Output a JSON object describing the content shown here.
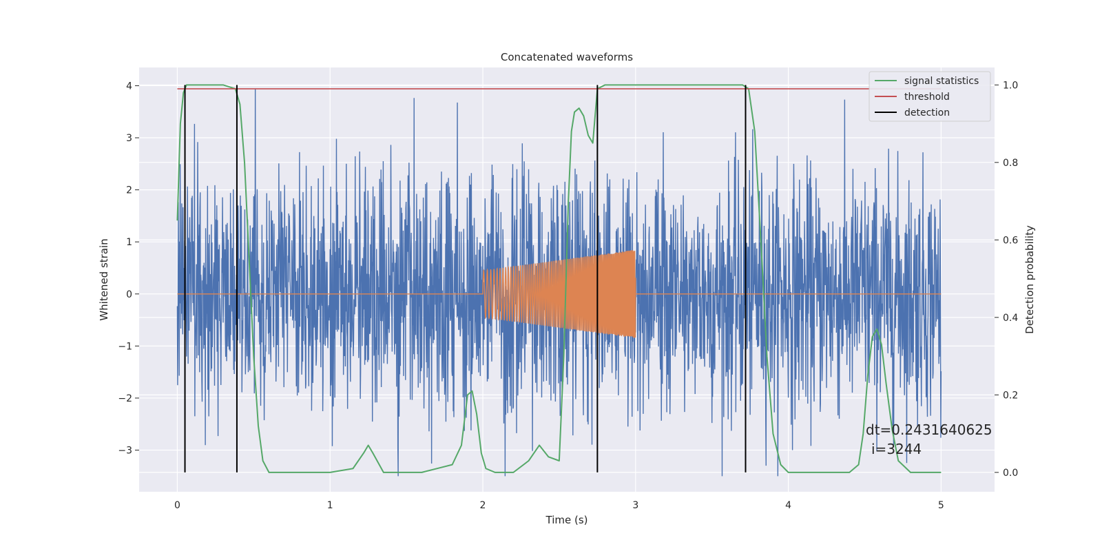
{
  "chart_data": {
    "type": "line",
    "title": "Concatenated waveforms",
    "xlabel": "Time (s)",
    "ylabel": "Whitened strain",
    "y2label": "Detection probability",
    "xlim": [
      -0.25,
      5.35
    ],
    "ylim": [
      -3.8,
      4.35
    ],
    "y2lim": [
      -0.05,
      1.045
    ],
    "xticks": [
      0,
      1,
      2,
      3,
      4,
      5
    ],
    "yticks": [
      -3,
      -2,
      -1,
      0,
      1,
      2,
      3,
      4
    ],
    "y2ticks": [
      0.0,
      0.2,
      0.4,
      0.6,
      0.8,
      1.0
    ],
    "grid": true,
    "legend_position": "top-right",
    "colors": {
      "background": "#eaeaf2",
      "noise": "#4c72b0",
      "injection": "#dd8452",
      "signal_statistics": "#55a868",
      "threshold": "#c44e52",
      "detection": "#000000"
    },
    "legend": [
      "signal statistics",
      "threshold",
      "detection"
    ],
    "noise": {
      "name": "whitened strain",
      "x_range": [
        0,
        5
      ],
      "typical_amplitude": 1.2,
      "max": 4.0,
      "min": -3.5
    },
    "injection": {
      "name": "injected waveform",
      "x_range": [
        2.0,
        3.0
      ],
      "amplitude_start": 0.45,
      "amplitude_end": 0.85,
      "frequency_start": 40,
      "frequency_end": 150
    },
    "series": [
      {
        "name": "signal statistics",
        "axis": "right",
        "x": [
          0.0,
          0.02,
          0.04,
          0.06,
          0.08,
          0.1,
          0.2,
          0.3,
          0.38,
          0.41,
          0.44,
          0.47,
          0.5,
          0.53,
          0.56,
          0.6,
          0.7,
          1.0,
          1.15,
          1.22,
          1.25,
          1.28,
          1.35,
          1.6,
          1.8,
          1.86,
          1.9,
          1.93,
          1.96,
          1.99,
          2.02,
          2.08,
          2.2,
          2.3,
          2.37,
          2.43,
          2.5,
          2.53,
          2.56,
          2.58,
          2.6,
          2.63,
          2.66,
          2.69,
          2.72,
          2.75,
          2.8,
          2.9,
          3.5,
          3.7,
          3.74,
          3.78,
          3.82,
          3.86,
          3.9,
          3.95,
          4.0,
          4.2,
          4.4,
          4.46,
          4.49,
          4.52,
          4.55,
          4.58,
          4.61,
          4.64,
          4.68,
          4.72,
          4.8,
          5.0
        ],
        "values": [
          0.65,
          0.9,
          0.98,
          1.0,
          1.0,
          1.0,
          1.0,
          1.0,
          0.99,
          0.95,
          0.8,
          0.55,
          0.3,
          0.12,
          0.03,
          0.0,
          0.0,
          0.0,
          0.01,
          0.05,
          0.07,
          0.05,
          0.0,
          0.0,
          0.02,
          0.07,
          0.2,
          0.21,
          0.15,
          0.05,
          0.01,
          0.0,
          0.0,
          0.03,
          0.07,
          0.04,
          0.03,
          0.3,
          0.7,
          0.88,
          0.93,
          0.94,
          0.92,
          0.87,
          0.85,
          0.99,
          1.0,
          1.0,
          1.0,
          1.0,
          0.99,
          0.88,
          0.6,
          0.3,
          0.1,
          0.02,
          0.0,
          0.0,
          0.0,
          0.02,
          0.1,
          0.25,
          0.35,
          0.37,
          0.33,
          0.23,
          0.11,
          0.03,
          0.0,
          0.0
        ]
      },
      {
        "name": "threshold",
        "axis": "right",
        "x": [
          0,
          5
        ],
        "values": [
          0.99,
          0.99
        ]
      }
    ],
    "detections": [
      0.05,
      0.39,
      2.75,
      3.72
    ],
    "annotations": [
      "dt=0.2431640625",
      "i=3244"
    ]
  }
}
